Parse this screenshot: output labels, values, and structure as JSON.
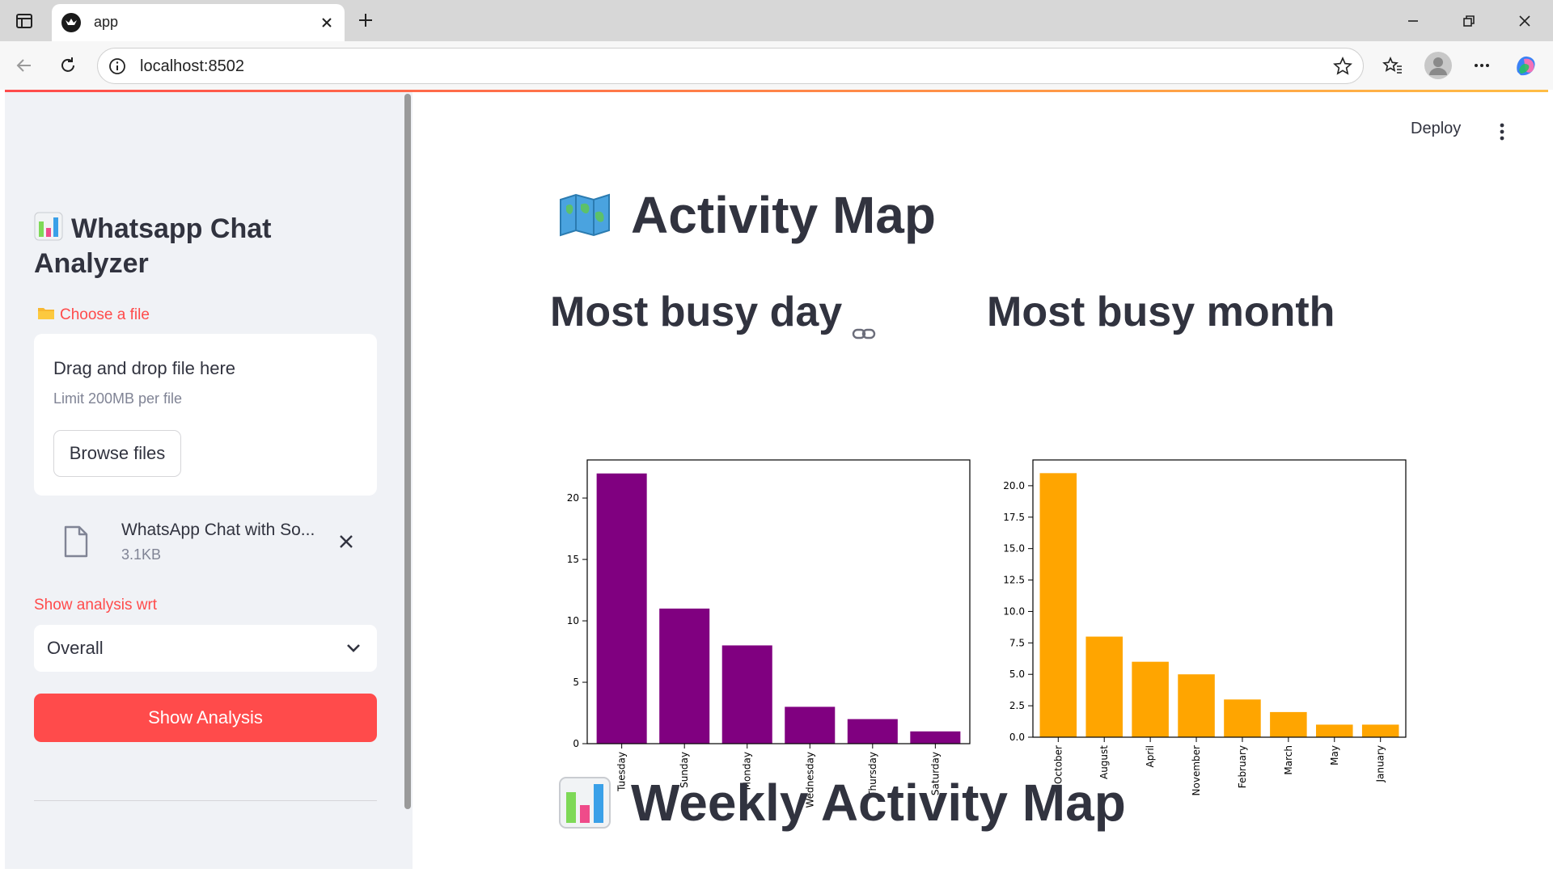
{
  "browser": {
    "tab_title": "app",
    "url": "localhost:8502"
  },
  "sidebar": {
    "title": "Whatsapp Chat Analyzer",
    "file_uploader_label": "Choose a file",
    "dropzone_title": "Drag and drop file here",
    "dropzone_limit": "Limit 200MB per file",
    "browse_label": "Browse files",
    "uploaded_file_name": "WhatsApp Chat with So...",
    "uploaded_file_size": "3.1KB",
    "select_label": "Show analysis wrt",
    "select_value": "Overall",
    "button_label": "Show Analysis"
  },
  "main": {
    "deploy_label": "Deploy",
    "section_title": "Activity Map",
    "day_title": "Most busy day",
    "month_title": "Most busy month",
    "weekly_title": "Weekly Activity Map"
  },
  "colors": {
    "accent": "#ff4b4b",
    "day_bars": "#800080",
    "month_bars": "#ffa500"
  },
  "chart_data": [
    {
      "type": "bar",
      "title": "Most busy day",
      "categories": [
        "Tuesday",
        "Sunday",
        "Monday",
        "Wednesday",
        "Thursday",
        "Saturday"
      ],
      "values": [
        22,
        11,
        8,
        3,
        2,
        1
      ],
      "yticks": [
        "0",
        "5",
        "10",
        "15",
        "20"
      ],
      "ylim": [
        0,
        23.1
      ],
      "xlabel": "",
      "ylabel": ""
    },
    {
      "type": "bar",
      "title": "Most busy month",
      "categories": [
        "October",
        "August",
        "April",
        "November",
        "February",
        "March",
        "May",
        "January"
      ],
      "values": [
        21,
        8,
        6,
        5,
        3,
        2,
        1,
        1
      ],
      "yticks": [
        "0.0",
        "2.5",
        "5.0",
        "7.5",
        "10.0",
        "12.5",
        "15.0",
        "17.5",
        "20.0"
      ],
      "ylim": [
        0,
        22.05
      ],
      "xlabel": "",
      "ylabel": ""
    }
  ]
}
